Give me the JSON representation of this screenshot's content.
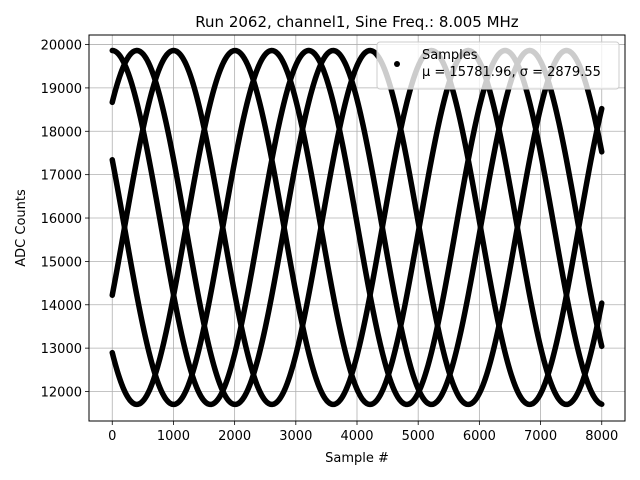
{
  "chart_data": {
    "type": "scatter",
    "title": "Run 2062, channel1, Sine Freq.: 8.005 MHz",
    "xlabel": "Sample #",
    "ylabel": "ADC Counts",
    "xlim": [
      -380,
      8380
    ],
    "ylim": [
      11320,
      20220
    ],
    "xticks": [
      0,
      1000,
      2000,
      3000,
      4000,
      5000,
      6000,
      7000,
      8000
    ],
    "yticks": [
      12000,
      13000,
      14000,
      15000,
      16000,
      17000,
      18000,
      19000,
      20000
    ],
    "grid": true,
    "legend": {
      "placement": "top-right",
      "entries": [
        {
          "label": "Samples",
          "stats": "μ = 15781.96, σ = 2879.55"
        }
      ]
    },
    "series": [
      {
        "name": "Samples",
        "color": "#000000",
        "model": "sinusoid",
        "offset": 15781.96,
        "amplitude": 4080,
        "period_samples": 3210,
        "phases_rad": [
          1.5708,
          -0.3927,
          -2.3562,
          2.7489,
          0.7854
        ],
        "x_range": [
          0,
          8000
        ]
      }
    ]
  },
  "colors": {
    "marker": "#000000",
    "grid": "#b0b0b0",
    "axes": "#000000",
    "legend_border": "#cccccc"
  }
}
